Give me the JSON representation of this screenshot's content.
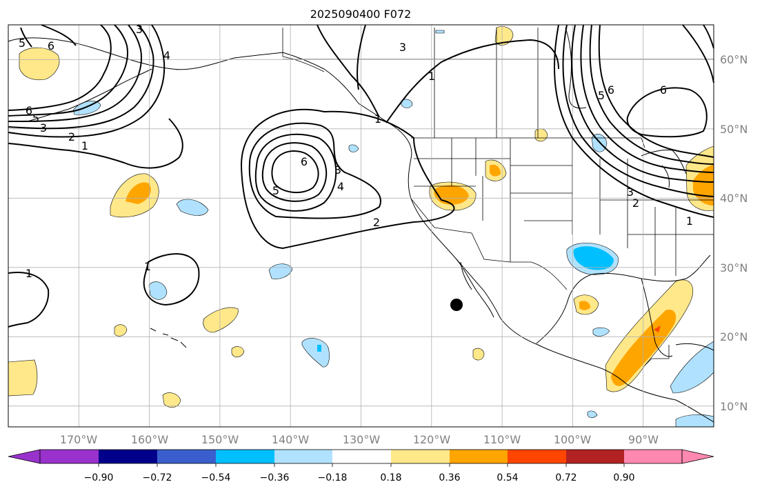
{
  "title": "2025090400 F072",
  "map": {
    "projection": "Plate Carree",
    "lon_range": [
      -180,
      -80
    ],
    "lat_range": [
      7,
      65
    ],
    "gridlines": true,
    "features": [
      "coastlines",
      "country borders",
      "US state borders"
    ],
    "lon_labels": [
      "170°W",
      "160°W",
      "150°W",
      "140°W",
      "130°W",
      "120°W",
      "110°W",
      "100°W",
      "90°W"
    ],
    "lat_labels": [
      "60°N",
      "50°N",
      "40°N",
      "30°N",
      "20°N",
      "10°N"
    ],
    "label_color": "#808080",
    "marker": {
      "type": "filled-circle",
      "color": "#000000",
      "lon": -116,
      "lat": 25
    }
  },
  "contours": {
    "color": "#000000",
    "labels": [
      "1",
      "2",
      "3",
      "4",
      "5",
      "6"
    ]
  },
  "colorbar": {
    "ticks": [
      "−0.90",
      "−0.72",
      "−0.54",
      "−0.36",
      "−0.18",
      "0.18",
      "0.36",
      "0.54",
      "0.72",
      "0.90"
    ],
    "colors": [
      "#9932cc",
      "#00008b",
      "#3a5fcd",
      "#00bfff",
      "#b0e2ff",
      "#ffffff",
      "#ffe88a",
      "#ffa500",
      "#ff4500",
      "#b22222",
      "#ff88b0"
    ],
    "extend": "both"
  }
}
